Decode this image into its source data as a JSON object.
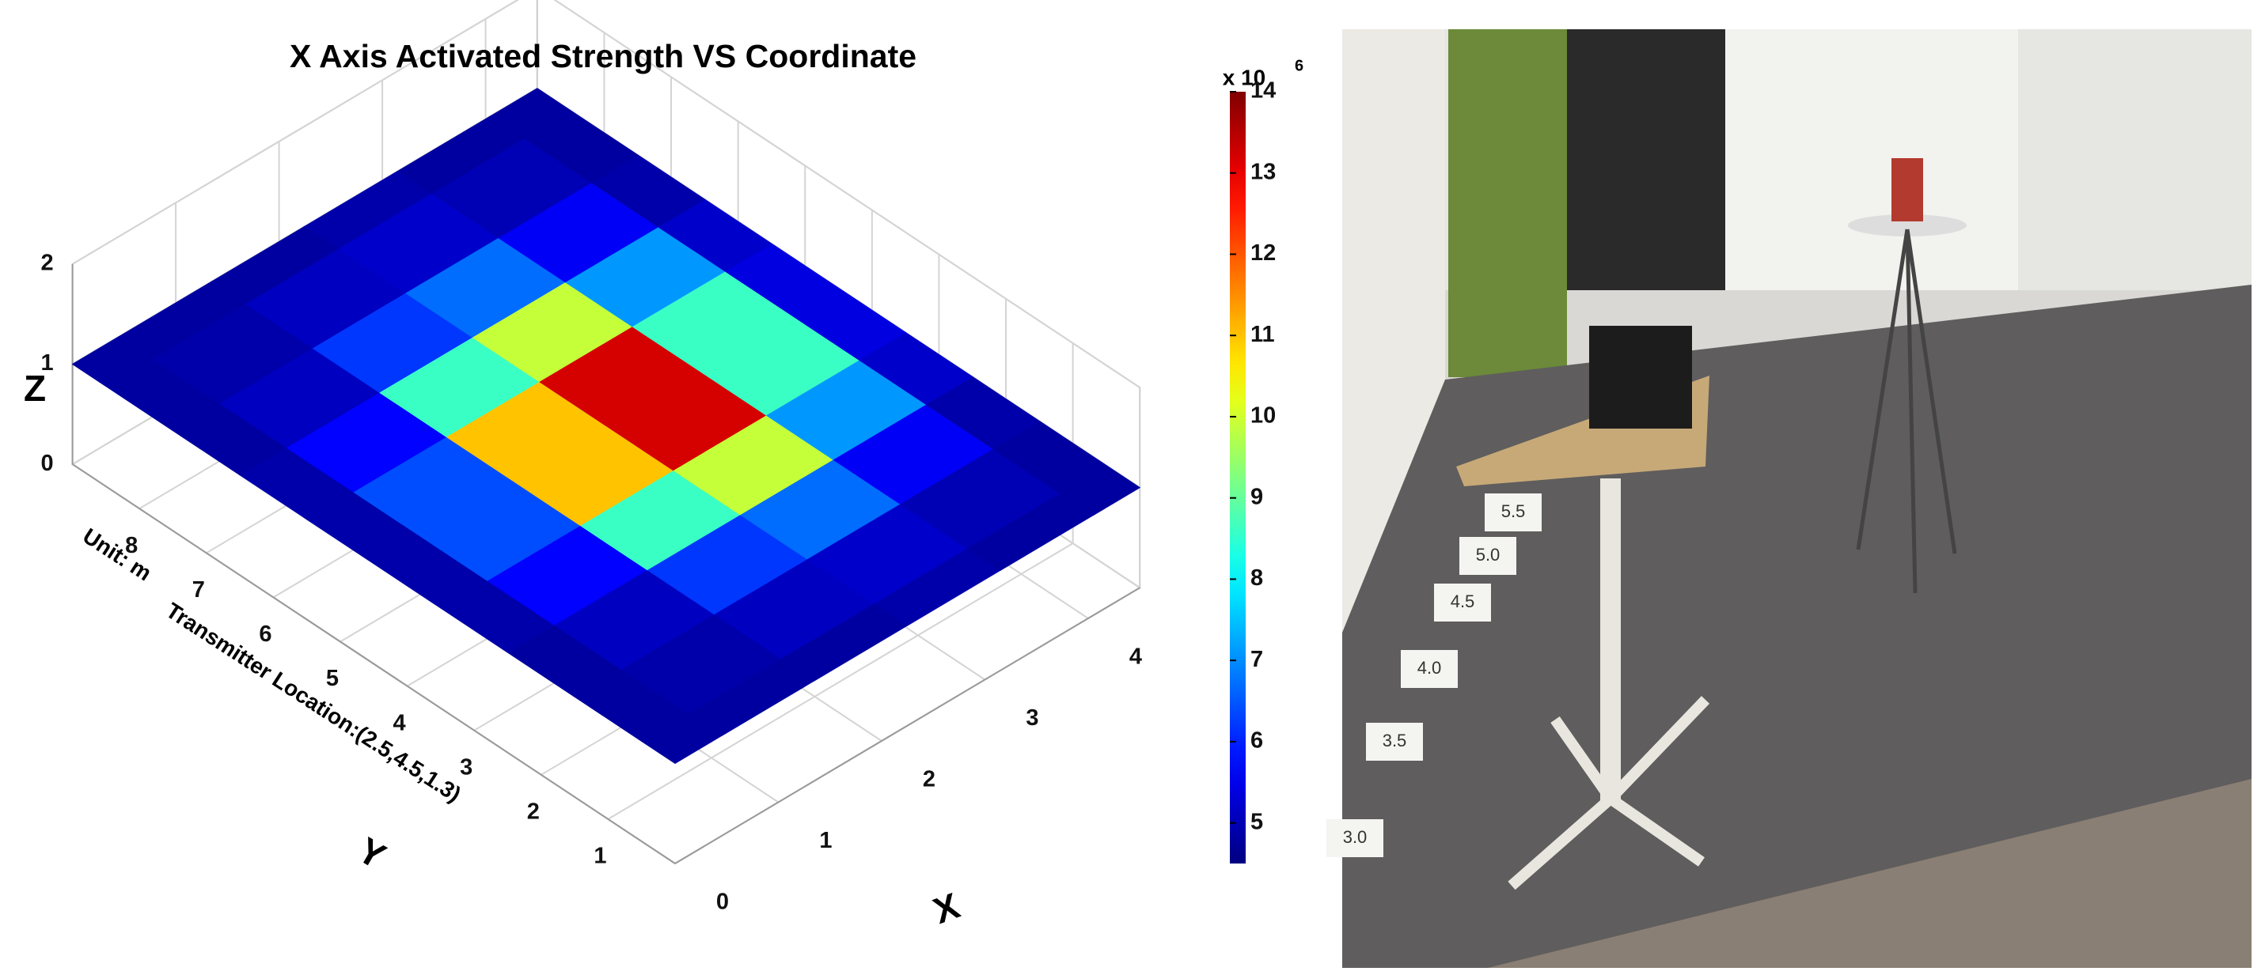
{
  "chart_data": {
    "type": "surface",
    "title": "X Axis Activated Strength VS Coordinate",
    "x_label": "X",
    "y_label": "Y",
    "z_label": "Z",
    "annotations": [
      "Unit: m",
      "Transmitter Location:(2.5,4.5,1.3)"
    ],
    "x": [
      0,
      0.9,
      1.8,
      2.7,
      3.6,
      4.5
    ],
    "y": [
      0,
      1,
      2,
      3,
      4,
      5,
      6,
      7,
      8,
      9
    ],
    "surface_z": 1,
    "values": [
      [
        4.8,
        4.8,
        4.8,
        4.9,
        4.8,
        4.8
      ],
      [
        4.8,
        4.9,
        5.1,
        5.2,
        5.0,
        4.8
      ],
      [
        4.8,
        5.1,
        6.2,
        6.7,
        5.6,
        4.9
      ],
      [
        4.9,
        5.7,
        8.6,
        9.9,
        7.1,
        5.2
      ],
      [
        4.9,
        6.4,
        11.0,
        13.2,
        8.6,
        5.4
      ],
      [
        4.9,
        6.4,
        11.0,
        13.2,
        8.6,
        5.4
      ],
      [
        4.9,
        5.7,
        8.6,
        9.9,
        7.1,
        5.2
      ],
      [
        4.8,
        5.1,
        6.2,
        6.7,
        5.6,
        4.9
      ],
      [
        4.8,
        4.9,
        5.1,
        5.2,
        5.0,
        4.8
      ],
      [
        4.8,
        4.8,
        4.8,
        4.9,
        4.8,
        4.8
      ]
    ],
    "xlim": [
      0,
      4.5
    ],
    "ylim": [
      0,
      9
    ],
    "zlim": [
      0,
      2
    ],
    "xticks": [
      0,
      1,
      2,
      3,
      4
    ],
    "yticks": [
      1,
      2,
      3,
      4,
      5,
      6,
      7,
      8
    ],
    "zticks": [
      0,
      1,
      2
    ],
    "colormap": "jet",
    "clim": [
      4.5,
      14
    ],
    "colorbar_ticks": [
      5,
      6,
      7,
      8,
      9,
      10,
      11,
      12,
      13,
      14
    ],
    "colorbar_multiplier": "x 10",
    "colorbar_exponent": "6",
    "grid": true
  },
  "photo": {
    "floor_markers": [
      "5.5",
      "5.0",
      "4.5",
      "4.0",
      "3.5",
      "3.0"
    ]
  }
}
